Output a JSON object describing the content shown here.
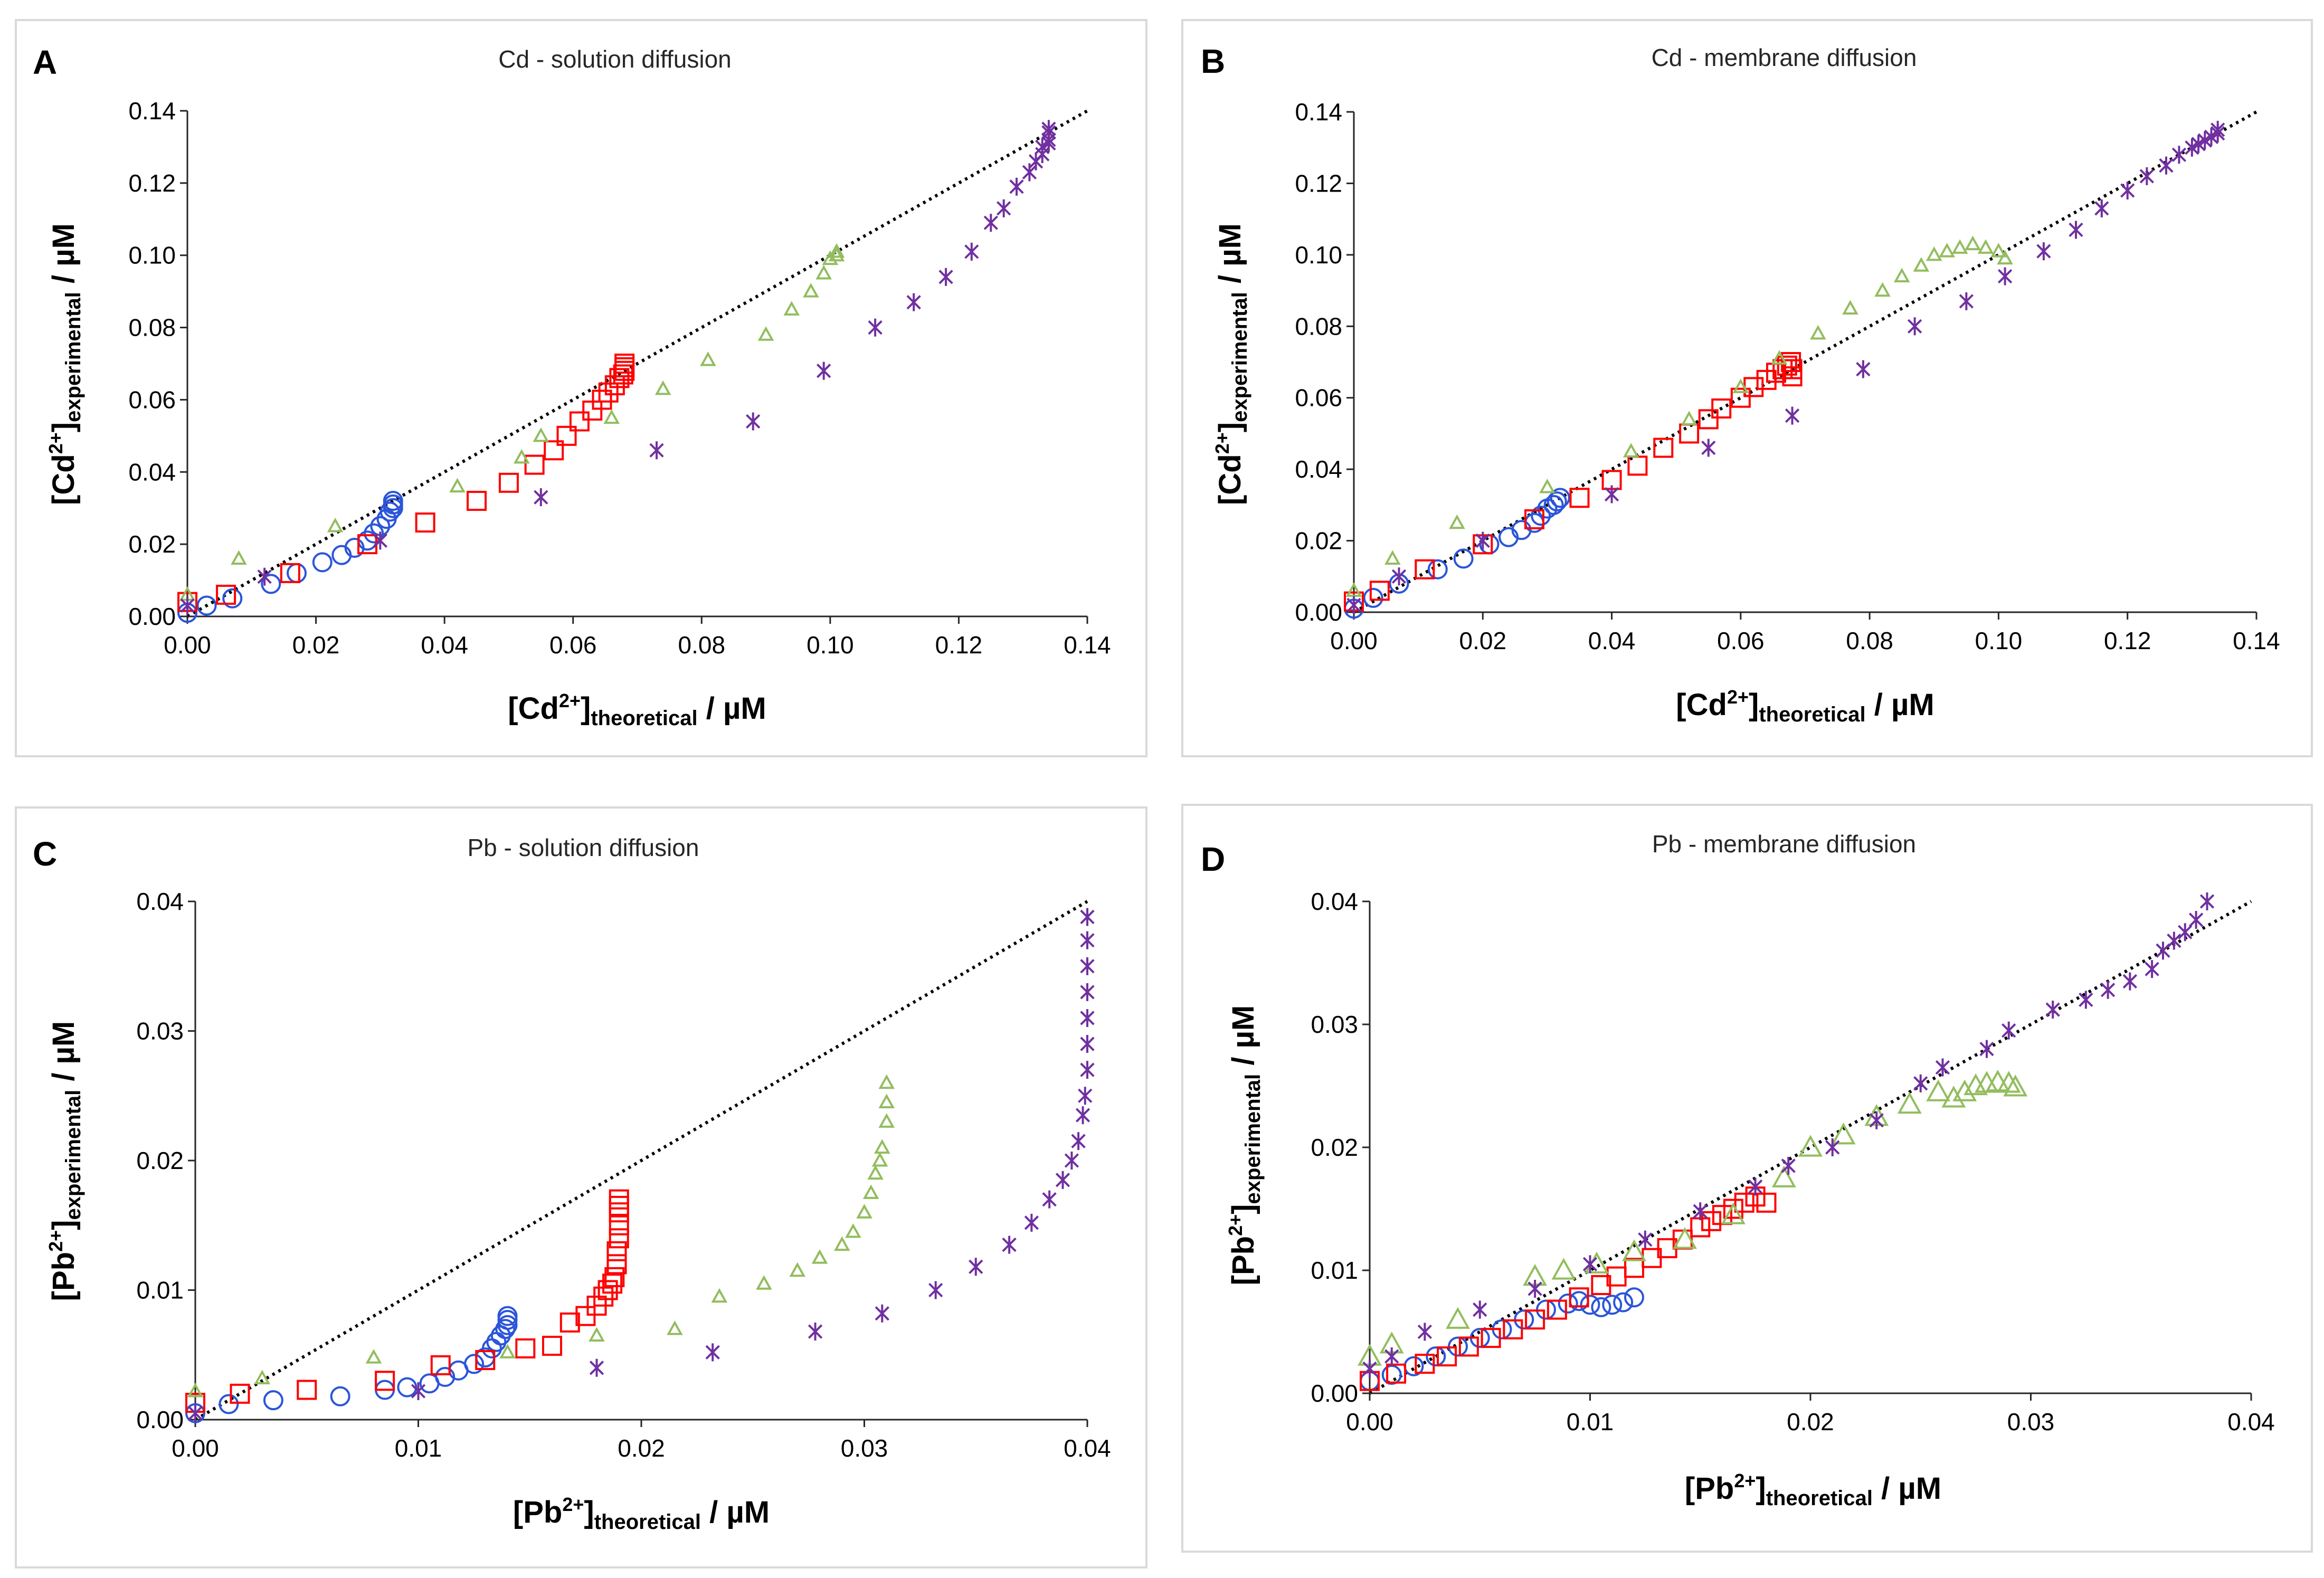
{
  "colors": {
    "blue": "#2b55d9",
    "red": "#ff0000",
    "green": "#92bd5e",
    "purple": "#7030a0"
  },
  "chart_data": [
    {
      "type": "scatter",
      "panel": "A",
      "title": "Cd - solution diffusion",
      "ylabel_base": "[Cd",
      "ylabel_sup": "2+",
      "ylabel_bracket": "]",
      "ylabel_sub": "experimental",
      "ylabel_unit": " / µM",
      "xlabel_base": "[Cd",
      "xlabel_sup": "2+",
      "xlabel_bracket": "]",
      "xlabel_sub": "theoretical",
      "xlabel_unit": " / µM",
      "xlim": [
        0,
        0.14
      ],
      "ylim": [
        0,
        0.14
      ],
      "xticks": [
        "0.00",
        "0.02",
        "0.04",
        "0.06",
        "0.08",
        "0.10",
        "0.12",
        "0.14"
      ],
      "yticks": [
        "0.00",
        "0.02",
        "0.04",
        "0.06",
        "0.08",
        "0.10",
        "0.12",
        "0.14"
      ],
      "reference_line": [
        [
          0,
          0
        ],
        [
          0.14,
          0.14
        ]
      ],
      "series": [
        {
          "name": "blue circles",
          "marker": "circle",
          "color": "#2b55d9",
          "size": 1.0,
          "x": [
            0.0,
            0.003,
            0.007,
            0.013,
            0.017,
            0.021,
            0.024,
            0.026,
            0.028,
            0.029,
            0.03,
            0.031,
            0.0315,
            0.032,
            0.032,
            0.032
          ],
          "y": [
            0.001,
            0.003,
            0.005,
            0.009,
            0.012,
            0.015,
            0.017,
            0.019,
            0.021,
            0.023,
            0.025,
            0.027,
            0.029,
            0.03,
            0.031,
            0.032
          ]
        },
        {
          "name": "red squares",
          "marker": "square",
          "color": "#ff0000",
          "size": 1.0,
          "x": [
            0.0,
            0.006,
            0.016,
            0.028,
            0.037,
            0.045,
            0.05,
            0.054,
            0.057,
            0.059,
            0.061,
            0.063,
            0.0645,
            0.0655,
            0.0665,
            0.0672,
            0.0678,
            0.068,
            0.068,
            0.068
          ],
          "y": [
            0.004,
            0.006,
            0.012,
            0.02,
            0.026,
            0.032,
            0.037,
            0.042,
            0.046,
            0.05,
            0.054,
            0.057,
            0.06,
            0.062,
            0.064,
            0.066,
            0.067,
            0.068,
            0.069,
            0.07
          ]
        },
        {
          "name": "green triangles",
          "marker": "triangle",
          "color": "#92bd5e",
          "size": 0.7,
          "x": [
            0.0,
            0.008,
            0.023,
            0.042,
            0.052,
            0.055,
            0.066,
            0.074,
            0.081,
            0.09,
            0.094,
            0.097,
            0.099,
            0.1,
            0.101,
            0.101
          ],
          "y": [
            0.006,
            0.016,
            0.025,
            0.036,
            0.044,
            0.05,
            0.055,
            0.063,
            0.071,
            0.078,
            0.085,
            0.09,
            0.095,
            0.099,
            0.101,
            0.1
          ]
        },
        {
          "name": "purple stars",
          "marker": "star",
          "color": "#7030a0",
          "size": 1.0,
          "x": [
            0.0,
            0.012,
            0.03,
            0.055,
            0.073,
            0.088,
            0.099,
            0.107,
            0.113,
            0.118,
            0.122,
            0.125,
            0.127,
            0.129,
            0.131,
            0.132,
            0.133,
            0.133,
            0.134,
            0.134,
            0.134,
            0.134
          ],
          "y": [
            0.003,
            0.011,
            0.021,
            0.033,
            0.046,
            0.054,
            0.068,
            0.08,
            0.087,
            0.094,
            0.101,
            0.109,
            0.113,
            0.119,
            0.123,
            0.126,
            0.128,
            0.13,
            0.131,
            0.132,
            0.134,
            0.135
          ]
        }
      ]
    },
    {
      "type": "scatter",
      "panel": "B",
      "title": "Cd - membrane diffusion",
      "ylabel_base": "[Cd",
      "ylabel_sup": "2+",
      "ylabel_bracket": "]",
      "ylabel_sub": "experimental",
      "ylabel_unit": " / µM",
      "xlabel_base": "[Cd",
      "xlabel_sup": "2+",
      "xlabel_bracket": "]",
      "xlabel_sub": "theoretical",
      "xlabel_unit": " / µM",
      "xlim": [
        0,
        0.14
      ],
      "ylim": [
        0,
        0.14
      ],
      "xticks": [
        "0.00",
        "0.02",
        "0.04",
        "0.06",
        "0.08",
        "0.10",
        "0.12",
        "0.14"
      ],
      "yticks": [
        "0.00",
        "0.02",
        "0.04",
        "0.06",
        "0.08",
        "0.10",
        "0.12",
        "0.14"
      ],
      "reference_line": [
        [
          0,
          0
        ],
        [
          0.14,
          0.14
        ]
      ],
      "series": [
        {
          "name": "blue circles",
          "marker": "circle",
          "color": "#2b55d9",
          "size": 1.0,
          "x": [
            0.0,
            0.003,
            0.007,
            0.013,
            0.017,
            0.021,
            0.024,
            0.026,
            0.028,
            0.029,
            0.03,
            0.031,
            0.0315,
            0.032
          ],
          "y": [
            0.001,
            0.004,
            0.008,
            0.012,
            0.015,
            0.019,
            0.021,
            0.023,
            0.025,
            0.027,
            0.029,
            0.03,
            0.031,
            0.032
          ]
        },
        {
          "name": "red squares",
          "marker": "square",
          "color": "#ff0000",
          "size": 1.0,
          "x": [
            0.0,
            0.004,
            0.011,
            0.02,
            0.028,
            0.035,
            0.04,
            0.044,
            0.048,
            0.052,
            0.055,
            0.057,
            0.06,
            0.062,
            0.064,
            0.0655,
            0.0665,
            0.0672,
            0.0678,
            0.068,
            0.068
          ],
          "y": [
            0.003,
            0.006,
            0.012,
            0.019,
            0.026,
            0.032,
            0.037,
            0.041,
            0.046,
            0.05,
            0.054,
            0.057,
            0.06,
            0.063,
            0.065,
            0.067,
            0.068,
            0.069,
            0.07,
            0.068,
            0.066
          ]
        },
        {
          "name": "green triangles",
          "marker": "triangle",
          "color": "#92bd5e",
          "size": 0.7,
          "x": [
            0.0,
            0.006,
            0.016,
            0.03,
            0.043,
            0.052,
            0.06,
            0.066,
            0.072,
            0.077,
            0.082,
            0.085,
            0.088,
            0.09,
            0.092,
            0.094,
            0.096,
            0.098,
            0.1,
            0.101
          ],
          "y": [
            0.006,
            0.015,
            0.025,
            0.035,
            0.045,
            0.054,
            0.063,
            0.071,
            0.078,
            0.085,
            0.09,
            0.094,
            0.097,
            0.1,
            0.101,
            0.102,
            0.103,
            0.102,
            0.101,
            0.099
          ]
        },
        {
          "name": "purple stars",
          "marker": "star",
          "color": "#7030a0",
          "size": 1.0,
          "x": [
            0.0,
            0.007,
            0.02,
            0.04,
            0.055,
            0.068,
            0.079,
            0.087,
            0.095,
            0.101,
            0.107,
            0.112,
            0.116,
            0.12,
            0.123,
            0.126,
            0.128,
            0.13,
            0.131,
            0.132,
            0.133,
            0.134,
            0.134
          ],
          "y": [
            0.002,
            0.01,
            0.02,
            0.033,
            0.046,
            0.055,
            0.068,
            0.08,
            0.087,
            0.094,
            0.101,
            0.107,
            0.113,
            0.118,
            0.122,
            0.125,
            0.128,
            0.13,
            0.131,
            0.132,
            0.133,
            0.134,
            0.135
          ]
        }
      ]
    },
    {
      "type": "scatter",
      "panel": "C",
      "title": "Pb - solution diffusion",
      "ylabel_base": "[Pb",
      "ylabel_sup": "2+",
      "ylabel_bracket": "]",
      "ylabel_sub": "experimental",
      "ylabel_unit": " / µM",
      "xlabel_base": "[Pb",
      "xlabel_sup": "2+",
      "xlabel_bracket": "]",
      "xlabel_sub": "theoretical",
      "xlabel_unit": " / µM",
      "xlim": [
        0,
        0.04
      ],
      "ylim": [
        0,
        0.04
      ],
      "xticks": [
        "0.00",
        "0.01",
        "0.02",
        "0.03",
        "0.04"
      ],
      "yticks": [
        "0.00",
        "0.01",
        "0.02",
        "0.03",
        "0.04"
      ],
      "reference_line": [
        [
          0,
          0
        ],
        [
          0.04,
          0.04
        ]
      ],
      "series": [
        {
          "name": "blue circles",
          "marker": "circle",
          "color": "#2b55d9",
          "size": 1.0,
          "x": [
            0.0,
            0.0015,
            0.0035,
            0.0065,
            0.0085,
            0.0095,
            0.0105,
            0.0112,
            0.0118,
            0.0125,
            0.013,
            0.0133,
            0.0135,
            0.0137,
            0.0139,
            0.014,
            0.014,
            0.014
          ],
          "y": [
            0.0005,
            0.0012,
            0.0015,
            0.0018,
            0.0023,
            0.0025,
            0.0028,
            0.0033,
            0.0038,
            0.0043,
            0.0048,
            0.0055,
            0.006,
            0.0065,
            0.007,
            0.0073,
            0.0077,
            0.008
          ]
        },
        {
          "name": "red squares",
          "marker": "square",
          "color": "#ff0000",
          "size": 1.0,
          "x": [
            0.0,
            0.002,
            0.005,
            0.0085,
            0.011,
            0.013,
            0.0148,
            0.016,
            0.0168,
            0.0175,
            0.018,
            0.0183,
            0.0185,
            0.0187,
            0.0188,
            0.0189,
            0.0189,
            0.019,
            0.019,
            0.019,
            0.019,
            0.019
          ],
          "y": [
            0.0013,
            0.002,
            0.0023,
            0.003,
            0.0042,
            0.0046,
            0.0055,
            0.0057,
            0.0075,
            0.008,
            0.0088,
            0.0095,
            0.01,
            0.0105,
            0.011,
            0.012,
            0.013,
            0.014,
            0.015,
            0.016,
            0.0165,
            0.017
          ]
        },
        {
          "name": "green triangles",
          "marker": "triangle",
          "color": "#92bd5e",
          "size": 0.7,
          "x": [
            0.0,
            0.003,
            0.008,
            0.014,
            0.018,
            0.0215,
            0.0235,
            0.0255,
            0.027,
            0.028,
            0.029,
            0.0295,
            0.03,
            0.0303,
            0.0305,
            0.0307,
            0.0308,
            0.031,
            0.031,
            0.031
          ],
          "y": [
            0.0022,
            0.0032,
            0.0048,
            0.0052,
            0.0065,
            0.007,
            0.0095,
            0.0105,
            0.0115,
            0.0125,
            0.0135,
            0.0145,
            0.016,
            0.0175,
            0.019,
            0.02,
            0.021,
            0.023,
            0.0245,
            0.026
          ]
        },
        {
          "name": "purple stars",
          "marker": "star",
          "color": "#7030a0",
          "size": 1.0,
          "x": [
            0.0,
            0.01,
            0.018,
            0.0232,
            0.0278,
            0.0308,
            0.0332,
            0.035,
            0.0365,
            0.0375,
            0.0383,
            0.0389,
            0.0393,
            0.0396,
            0.0398,
            0.0399,
            0.04,
            0.04,
            0.04,
            0.04,
            0.04,
            0.04,
            0.04
          ],
          "y": [
            0.0005,
            0.0022,
            0.004,
            0.0052,
            0.0068,
            0.0082,
            0.01,
            0.0118,
            0.0135,
            0.0152,
            0.017,
            0.0185,
            0.02,
            0.0215,
            0.0235,
            0.025,
            0.027,
            0.029,
            0.031,
            0.033,
            0.035,
            0.037,
            0.0388
          ]
        }
      ]
    },
    {
      "type": "scatter",
      "panel": "D",
      "title": "Pb - membrane diffusion",
      "ylabel_base": "[Pb",
      "ylabel_sup": "2+",
      "ylabel_bracket": "]",
      "ylabel_sub": "experimental",
      "ylabel_unit": " / µM",
      "xlabel_base": "[Pb",
      "xlabel_sup": "2+",
      "xlabel_bracket": "]",
      "xlabel_sub": "theoretical",
      "xlabel_unit": " / µM",
      "xlim": [
        0,
        0.04
      ],
      "ylim": [
        0,
        0.04
      ],
      "xticks": [
        "0.00",
        "0.01",
        "0.02",
        "0.03",
        "0.04"
      ],
      "yticks": [
        "0.00",
        "0.01",
        "0.02",
        "0.03",
        "0.04"
      ],
      "reference_line": [
        [
          0,
          0
        ],
        [
          0.04,
          0.04
        ]
      ],
      "series": [
        {
          "name": "blue circles",
          "marker": "circle",
          "color": "#2b55d9",
          "size": 1.0,
          "x": [
            0.0,
            0.001,
            0.002,
            0.003,
            0.004,
            0.005,
            0.006,
            0.007,
            0.008,
            0.009,
            0.0095,
            0.01,
            0.0105,
            0.011,
            0.0115,
            0.012
          ],
          "y": [
            0.001,
            0.0015,
            0.0022,
            0.003,
            0.0038,
            0.0045,
            0.0052,
            0.006,
            0.0068,
            0.0073,
            0.0075,
            0.0072,
            0.007,
            0.0072,
            0.0074,
            0.0078
          ]
        },
        {
          "name": "red squares",
          "marker": "square",
          "color": "#ff0000",
          "size": 1.0,
          "x": [
            0.0,
            0.0012,
            0.0025,
            0.0035,
            0.0045,
            0.0055,
            0.0065,
            0.0075,
            0.0085,
            0.0095,
            0.0105,
            0.0112,
            0.012,
            0.0128,
            0.0135,
            0.0142,
            0.015,
            0.0155,
            0.016,
            0.0165,
            0.017,
            0.0175,
            0.018
          ],
          "y": [
            0.001,
            0.0016,
            0.0024,
            0.003,
            0.0038,
            0.0045,
            0.0052,
            0.006,
            0.0068,
            0.0078,
            0.0088,
            0.0095,
            0.0102,
            0.011,
            0.0118,
            0.0125,
            0.0135,
            0.014,
            0.0145,
            0.015,
            0.0155,
            0.016,
            0.0155
          ]
        },
        {
          "name": "green triangles",
          "marker": "triangle",
          "color": "#92bd5e",
          "size": 1.15,
          "x": [
            0.0,
            0.001,
            0.004,
            0.0075,
            0.0088,
            0.0103,
            0.012,
            0.0143,
            0.0165,
            0.0188,
            0.02,
            0.0215,
            0.023,
            0.0245,
            0.0258,
            0.0265,
            0.027,
            0.0275,
            0.028,
            0.0285,
            0.029,
            0.0293
          ],
          "y": [
            0.003,
            0.004,
            0.006,
            0.0095,
            0.01,
            0.0105,
            0.0115,
            0.0125,
            0.0145,
            0.0175,
            0.02,
            0.021,
            0.0225,
            0.0235,
            0.0245,
            0.024,
            0.0245,
            0.025,
            0.0252,
            0.0253,
            0.0252,
            0.0249
          ]
        },
        {
          "name": "purple stars",
          "marker": "star",
          "color": "#7030a0",
          "size": 1.0,
          "x": [
            0.0,
            0.001,
            0.0025,
            0.005,
            0.0075,
            0.01,
            0.0125,
            0.015,
            0.0175,
            0.019,
            0.021,
            0.023,
            0.025,
            0.026,
            0.028,
            0.029,
            0.031,
            0.0325,
            0.0335,
            0.0345,
            0.0355,
            0.036,
            0.0365,
            0.037,
            0.0375,
            0.038
          ],
          "y": [
            0.002,
            0.003,
            0.005,
            0.0068,
            0.0085,
            0.0105,
            0.0125,
            0.0148,
            0.0168,
            0.0185,
            0.02,
            0.0222,
            0.0252,
            0.0265,
            0.028,
            0.0295,
            0.0312,
            0.032,
            0.0328,
            0.0335,
            0.0345,
            0.036,
            0.0368,
            0.0375,
            0.0385,
            0.04
          ]
        }
      ]
    }
  ]
}
